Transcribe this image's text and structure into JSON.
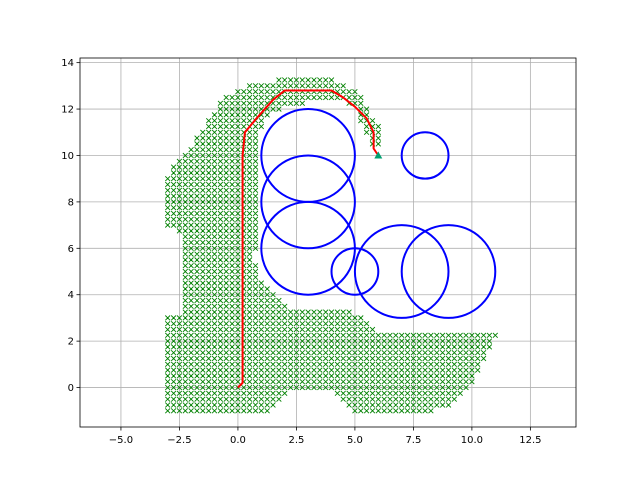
{
  "chart_data": {
    "type": "scatter",
    "title": "",
    "xlabel": "",
    "ylabel": "",
    "xlim": [
      -6.75,
      14.45
    ],
    "ylim": [
      -1.7,
      14.2
    ],
    "grid": true,
    "xticks": [
      -5.0,
      -2.5,
      0.0,
      2.5,
      5.0,
      7.5,
      10.0,
      12.5
    ],
    "xtick_labels": [
      "−5.0",
      "−2.5",
      "0.0",
      "2.5",
      "5.0",
      "7.5",
      "10.0",
      "12.5"
    ],
    "yticks": [
      0,
      2,
      4,
      6,
      8,
      10,
      12,
      14
    ],
    "ytick_labels": [
      "0",
      "2",
      "4",
      "6",
      "8",
      "10",
      "12",
      "14"
    ],
    "colors": {
      "explored": "#008000",
      "obstacle": "#0000ff",
      "path": "#ff0000",
      "goal": "#00a070"
    },
    "explored_region": {
      "marker": "x",
      "spacing": 0.25,
      "boundary": [
        [
          -3,
          -1
        ],
        [
          -3,
          3
        ],
        [
          -2.5,
          3.2
        ],
        [
          -2.4,
          4.2
        ],
        [
          -2.4,
          6.4
        ],
        [
          -2.6,
          6.8
        ],
        [
          -3,
          7
        ],
        [
          -3,
          9.2
        ],
        [
          -2.2,
          10.2
        ],
        [
          -1.2,
          11.6
        ],
        [
          -0.6,
          12.6
        ],
        [
          0.5,
          13
        ],
        [
          1.5,
          13.2
        ],
        [
          2.5,
          13.5
        ],
        [
          4.5,
          13.2
        ],
        [
          5.2,
          12.6
        ],
        [
          5.9,
          11.5
        ],
        [
          6.2,
          10.8
        ],
        [
          6.2,
          10.1
        ],
        [
          5.6,
          10.6
        ],
        [
          5,
          12.1
        ],
        [
          4.5,
          12.3
        ],
        [
          3,
          12.3
        ],
        [
          1.8,
          12
        ],
        [
          1.2,
          11.5
        ],
        [
          0.9,
          10.8
        ],
        [
          0.8,
          9.5
        ],
        [
          0.9,
          8.2
        ],
        [
          0.9,
          6.8
        ],
        [
          0.7,
          5.6
        ],
        [
          1,
          4.6
        ],
        [
          1.5,
          4.1
        ],
        [
          2,
          3.6
        ],
        [
          2.5,
          3.4
        ],
        [
          4.5,
          3.4
        ],
        [
          5.3,
          3.1
        ],
        [
          6.2,
          2.3
        ],
        [
          11.1,
          2.3
        ],
        [
          10.5,
          1.2
        ],
        [
          10,
          0
        ],
        [
          9.4,
          -0.6
        ],
        [
          8.5,
          -1
        ],
        [
          5,
          -1
        ],
        [
          4.5,
          -0.6
        ],
        [
          4,
          -0.2
        ],
        [
          2.5,
          -0.2
        ],
        [
          2,
          -0.3
        ],
        [
          1.5,
          -1
        ]
      ]
    },
    "obstacles": [
      {
        "cx": 3,
        "cy": 6,
        "r": 2
      },
      {
        "cx": 3,
        "cy": 8,
        "r": 2
      },
      {
        "cx": 3,
        "cy": 10,
        "r": 2
      },
      {
        "cx": 5,
        "cy": 5,
        "r": 1
      },
      {
        "cx": 7,
        "cy": 5,
        "r": 2
      },
      {
        "cx": 9,
        "cy": 5,
        "r": 2
      },
      {
        "cx": 8,
        "cy": 10,
        "r": 1
      }
    ],
    "path": {
      "x": [
        0,
        0.2,
        0.2,
        0.2,
        0.2,
        0.2,
        0.2,
        0.3,
        0.8,
        1.5,
        2,
        2.5,
        3,
        4,
        4.5,
        5,
        5.5,
        5.8,
        5.8,
        6
      ],
      "y": [
        0,
        0.2,
        2,
        4,
        6,
        8,
        10,
        11,
        11.6,
        12.4,
        12.8,
        12.8,
        12.8,
        12.8,
        12.5,
        12.1,
        11.6,
        11,
        10.3,
        10
      ]
    },
    "goal": {
      "x": 6,
      "y": 10
    }
  }
}
